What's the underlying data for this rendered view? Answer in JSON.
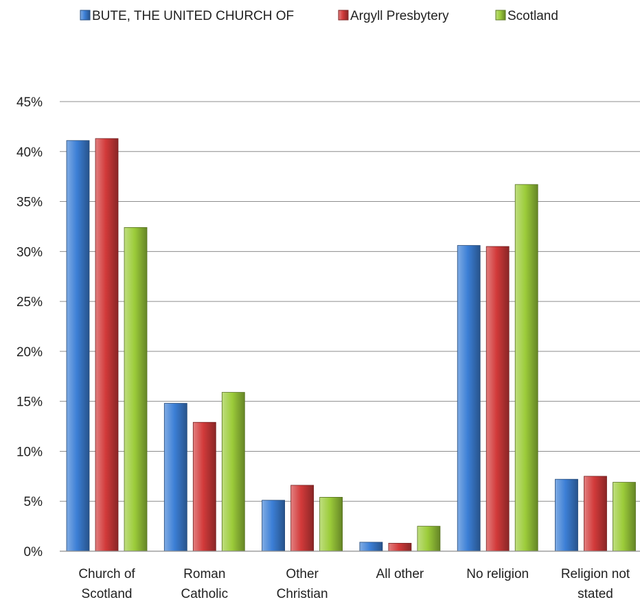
{
  "chart_data": {
    "type": "bar",
    "categories": [
      [
        "Church of",
        "Scotland"
      ],
      [
        "Roman",
        "Catholic"
      ],
      [
        "Other",
        "Christian"
      ],
      [
        "All other"
      ],
      [
        "No religion"
      ],
      [
        "Religion not",
        "stated"
      ]
    ],
    "series": [
      {
        "name": "BUTE, THE UNITED CHURCH OF",
        "color": "#3c7fd6",
        "values": [
          41.1,
          14.8,
          5.1,
          0.9,
          30.6,
          7.2
        ]
      },
      {
        "name": "Argyll Presbytery",
        "color": "#d23a3a",
        "values": [
          41.3,
          12.9,
          6.6,
          0.8,
          30.5,
          7.5
        ]
      },
      {
        "name": "Scotland",
        "color": "#9ccc3a",
        "values": [
          32.4,
          15.9,
          5.4,
          2.5,
          36.7,
          6.9
        ]
      }
    ],
    "y_ticks": [
      "0%",
      "5%",
      "10%",
      "15%",
      "20%",
      "25%",
      "30%",
      "35%",
      "40%",
      "45%"
    ],
    "ylim": [
      0,
      45
    ],
    "y_unit": "%",
    "grid": true,
    "legend_position": "top"
  }
}
